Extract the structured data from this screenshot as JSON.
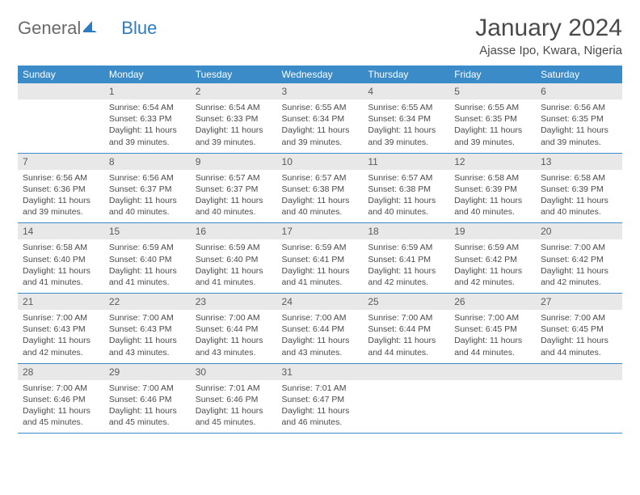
{
  "brand": {
    "text1": "General",
    "text2": "Blue"
  },
  "title": "January 2024",
  "location": "Ajasse Ipo, Kwara, Nigeria",
  "colors": {
    "header_bg": "#3b8bc9",
    "header_text": "#ffffff",
    "daynum_bg": "#e8e8e8",
    "rule": "#3b8bc9",
    "body_text": "#4a4a4a",
    "logo_gray": "#6a6a6a",
    "logo_blue": "#2d7bc0",
    "page_bg": "#ffffff"
  },
  "fonts": {
    "title_size_pt": 22,
    "location_size_pt": 11,
    "dow_size_pt": 9,
    "daynum_size_pt": 9,
    "body_size_pt": 8
  },
  "dow": [
    "Sunday",
    "Monday",
    "Tuesday",
    "Wednesday",
    "Thursday",
    "Friday",
    "Saturday"
  ],
  "weeks": [
    [
      {
        "n": "",
        "sr": "",
        "ss": "",
        "dl": ""
      },
      {
        "n": "1",
        "sr": "Sunrise: 6:54 AM",
        "ss": "Sunset: 6:33 PM",
        "dl": "Daylight: 11 hours and 39 minutes."
      },
      {
        "n": "2",
        "sr": "Sunrise: 6:54 AM",
        "ss": "Sunset: 6:33 PM",
        "dl": "Daylight: 11 hours and 39 minutes."
      },
      {
        "n": "3",
        "sr": "Sunrise: 6:55 AM",
        "ss": "Sunset: 6:34 PM",
        "dl": "Daylight: 11 hours and 39 minutes."
      },
      {
        "n": "4",
        "sr": "Sunrise: 6:55 AM",
        "ss": "Sunset: 6:34 PM",
        "dl": "Daylight: 11 hours and 39 minutes."
      },
      {
        "n": "5",
        "sr": "Sunrise: 6:55 AM",
        "ss": "Sunset: 6:35 PM",
        "dl": "Daylight: 11 hours and 39 minutes."
      },
      {
        "n": "6",
        "sr": "Sunrise: 6:56 AM",
        "ss": "Sunset: 6:35 PM",
        "dl": "Daylight: 11 hours and 39 minutes."
      }
    ],
    [
      {
        "n": "7",
        "sr": "Sunrise: 6:56 AM",
        "ss": "Sunset: 6:36 PM",
        "dl": "Daylight: 11 hours and 39 minutes."
      },
      {
        "n": "8",
        "sr": "Sunrise: 6:56 AM",
        "ss": "Sunset: 6:37 PM",
        "dl": "Daylight: 11 hours and 40 minutes."
      },
      {
        "n": "9",
        "sr": "Sunrise: 6:57 AM",
        "ss": "Sunset: 6:37 PM",
        "dl": "Daylight: 11 hours and 40 minutes."
      },
      {
        "n": "10",
        "sr": "Sunrise: 6:57 AM",
        "ss": "Sunset: 6:38 PM",
        "dl": "Daylight: 11 hours and 40 minutes."
      },
      {
        "n": "11",
        "sr": "Sunrise: 6:57 AM",
        "ss": "Sunset: 6:38 PM",
        "dl": "Daylight: 11 hours and 40 minutes."
      },
      {
        "n": "12",
        "sr": "Sunrise: 6:58 AM",
        "ss": "Sunset: 6:39 PM",
        "dl": "Daylight: 11 hours and 40 minutes."
      },
      {
        "n": "13",
        "sr": "Sunrise: 6:58 AM",
        "ss": "Sunset: 6:39 PM",
        "dl": "Daylight: 11 hours and 40 minutes."
      }
    ],
    [
      {
        "n": "14",
        "sr": "Sunrise: 6:58 AM",
        "ss": "Sunset: 6:40 PM",
        "dl": "Daylight: 11 hours and 41 minutes."
      },
      {
        "n": "15",
        "sr": "Sunrise: 6:59 AM",
        "ss": "Sunset: 6:40 PM",
        "dl": "Daylight: 11 hours and 41 minutes."
      },
      {
        "n": "16",
        "sr": "Sunrise: 6:59 AM",
        "ss": "Sunset: 6:40 PM",
        "dl": "Daylight: 11 hours and 41 minutes."
      },
      {
        "n": "17",
        "sr": "Sunrise: 6:59 AM",
        "ss": "Sunset: 6:41 PM",
        "dl": "Daylight: 11 hours and 41 minutes."
      },
      {
        "n": "18",
        "sr": "Sunrise: 6:59 AM",
        "ss": "Sunset: 6:41 PM",
        "dl": "Daylight: 11 hours and 42 minutes."
      },
      {
        "n": "19",
        "sr": "Sunrise: 6:59 AM",
        "ss": "Sunset: 6:42 PM",
        "dl": "Daylight: 11 hours and 42 minutes."
      },
      {
        "n": "20",
        "sr": "Sunrise: 7:00 AM",
        "ss": "Sunset: 6:42 PM",
        "dl": "Daylight: 11 hours and 42 minutes."
      }
    ],
    [
      {
        "n": "21",
        "sr": "Sunrise: 7:00 AM",
        "ss": "Sunset: 6:43 PM",
        "dl": "Daylight: 11 hours and 42 minutes."
      },
      {
        "n": "22",
        "sr": "Sunrise: 7:00 AM",
        "ss": "Sunset: 6:43 PM",
        "dl": "Daylight: 11 hours and 43 minutes."
      },
      {
        "n": "23",
        "sr": "Sunrise: 7:00 AM",
        "ss": "Sunset: 6:44 PM",
        "dl": "Daylight: 11 hours and 43 minutes."
      },
      {
        "n": "24",
        "sr": "Sunrise: 7:00 AM",
        "ss": "Sunset: 6:44 PM",
        "dl": "Daylight: 11 hours and 43 minutes."
      },
      {
        "n": "25",
        "sr": "Sunrise: 7:00 AM",
        "ss": "Sunset: 6:44 PM",
        "dl": "Daylight: 11 hours and 44 minutes."
      },
      {
        "n": "26",
        "sr": "Sunrise: 7:00 AM",
        "ss": "Sunset: 6:45 PM",
        "dl": "Daylight: 11 hours and 44 minutes."
      },
      {
        "n": "27",
        "sr": "Sunrise: 7:00 AM",
        "ss": "Sunset: 6:45 PM",
        "dl": "Daylight: 11 hours and 44 minutes."
      }
    ],
    [
      {
        "n": "28",
        "sr": "Sunrise: 7:00 AM",
        "ss": "Sunset: 6:46 PM",
        "dl": "Daylight: 11 hours and 45 minutes."
      },
      {
        "n": "29",
        "sr": "Sunrise: 7:00 AM",
        "ss": "Sunset: 6:46 PM",
        "dl": "Daylight: 11 hours and 45 minutes."
      },
      {
        "n": "30",
        "sr": "Sunrise: 7:01 AM",
        "ss": "Sunset: 6:46 PM",
        "dl": "Daylight: 11 hours and 45 minutes."
      },
      {
        "n": "31",
        "sr": "Sunrise: 7:01 AM",
        "ss": "Sunset: 6:47 PM",
        "dl": "Daylight: 11 hours and 46 minutes."
      },
      {
        "n": "",
        "sr": "",
        "ss": "",
        "dl": ""
      },
      {
        "n": "",
        "sr": "",
        "ss": "",
        "dl": ""
      },
      {
        "n": "",
        "sr": "",
        "ss": "",
        "dl": ""
      }
    ]
  ]
}
